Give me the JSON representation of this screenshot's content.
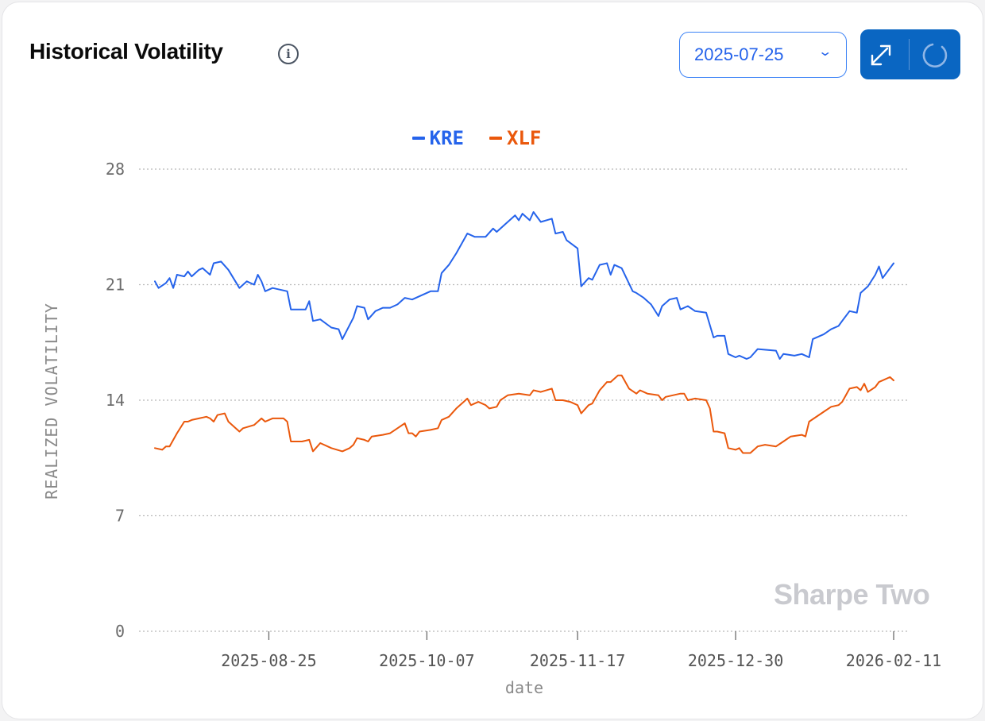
{
  "header": {
    "title": "Historical Volatility",
    "info_icon": "info-icon",
    "date_value": "2025-07-25",
    "expand_icon": "expand-icon",
    "refresh_icon": "loading-spinner-icon"
  },
  "watermark": "Sharpe Two",
  "colors": {
    "KRE": "#2563eb",
    "XLF": "#ea580c",
    "accent": "#0a66c2"
  },
  "chart_data": {
    "type": "line",
    "title": "Historical Volatility",
    "xlabel": "date",
    "ylabel": "REALIZED VOLATILITY",
    "x_start": "2025-07-25",
    "x_units": "days since x_start",
    "xlim": [
      0,
      201
    ],
    "ylim": [
      0,
      28
    ],
    "yticks": [
      0,
      7,
      14,
      21,
      28
    ],
    "xticks": [
      "2025-08-25",
      "2025-10-07",
      "2025-11-17",
      "2025-12-30",
      "2026-02-11"
    ],
    "grid": true,
    "legend": "top-center",
    "series": [
      {
        "name": "KRE",
        "points": [
          [
            0,
            21.2
          ],
          [
            1,
            20.8
          ],
          [
            3,
            21.1
          ],
          [
            4,
            21.4
          ],
          [
            5,
            20.8
          ],
          [
            6,
            21.6
          ],
          [
            8,
            21.5
          ],
          [
            9,
            21.8
          ],
          [
            10,
            21.5
          ],
          [
            12,
            21.9
          ],
          [
            13,
            22.0
          ],
          [
            15,
            21.6
          ],
          [
            16,
            22.3
          ],
          [
            18,
            22.4
          ],
          [
            20,
            21.9
          ],
          [
            23,
            20.8
          ],
          [
            25,
            21.2
          ],
          [
            27,
            21.0
          ],
          [
            28,
            21.6
          ],
          [
            29,
            21.2
          ],
          [
            30,
            20.6
          ],
          [
            32,
            20.8
          ],
          [
            36,
            20.6
          ],
          [
            37,
            19.5
          ],
          [
            40,
            19.5
          ],
          [
            41,
            19.5
          ],
          [
            42,
            20.0
          ],
          [
            43,
            18.8
          ],
          [
            45,
            18.9
          ],
          [
            48,
            18.4
          ],
          [
            50,
            18.3
          ],
          [
            51,
            17.7
          ],
          [
            54,
            19.0
          ],
          [
            55,
            19.7
          ],
          [
            57,
            19.6
          ],
          [
            58,
            18.9
          ],
          [
            60,
            19.4
          ],
          [
            62,
            19.6
          ],
          [
            64,
            19.6
          ],
          [
            66,
            19.8
          ],
          [
            68,
            20.2
          ],
          [
            70,
            20.1
          ],
          [
            75,
            20.6
          ],
          [
            77,
            20.6
          ],
          [
            78,
            21.7
          ],
          [
            80,
            22.2
          ],
          [
            82,
            22.9
          ],
          [
            84,
            23.7
          ],
          [
            85,
            24.1
          ],
          [
            87,
            23.9
          ],
          [
            90,
            23.9
          ],
          [
            92,
            24.4
          ],
          [
            93,
            24.2
          ],
          [
            96,
            24.8
          ],
          [
            98,
            25.2
          ],
          [
            99,
            24.9
          ],
          [
            100,
            25.3
          ],
          [
            102,
            24.9
          ],
          [
            103,
            25.4
          ],
          [
            105,
            24.8
          ],
          [
            108,
            25.0
          ],
          [
            109,
            24.1
          ],
          [
            111,
            24.2
          ],
          [
            112,
            23.7
          ],
          [
            115,
            23.2
          ],
          [
            116,
            20.9
          ],
          [
            118,
            21.4
          ],
          [
            119,
            21.3
          ],
          [
            121,
            22.2
          ],
          [
            123,
            22.3
          ],
          [
            124,
            21.6
          ],
          [
            125,
            22.2
          ],
          [
            127,
            22.0
          ],
          [
            130,
            20.6
          ],
          [
            131,
            20.5
          ],
          [
            133,
            20.2
          ],
          [
            135,
            19.8
          ],
          [
            137,
            19.1
          ],
          [
            138,
            19.7
          ],
          [
            140,
            20.1
          ],
          [
            142,
            20.2
          ],
          [
            143,
            19.5
          ],
          [
            145,
            19.7
          ],
          [
            147,
            19.4
          ],
          [
            150,
            19.3
          ],
          [
            152,
            17.8
          ],
          [
            153,
            17.9
          ],
          [
            155,
            17.9
          ],
          [
            156,
            16.8
          ],
          [
            158,
            16.6
          ],
          [
            159,
            16.7
          ],
          [
            161,
            16.5
          ],
          [
            162,
            16.6
          ],
          [
            164,
            17.1
          ],
          [
            169,
            17.0
          ],
          [
            170,
            16.5
          ],
          [
            171,
            16.8
          ],
          [
            174,
            16.7
          ],
          [
            176,
            16.8
          ],
          [
            178,
            16.6
          ],
          [
            179,
            17.7
          ],
          [
            182,
            18.0
          ],
          [
            184,
            18.3
          ],
          [
            186,
            18.5
          ],
          [
            187,
            18.8
          ],
          [
            189,
            19.4
          ],
          [
            191,
            19.3
          ],
          [
            192,
            20.5
          ],
          [
            194,
            20.9
          ],
          [
            196,
            21.6
          ],
          [
            197,
            22.1
          ],
          [
            198,
            21.4
          ],
          [
            200,
            22.0
          ],
          [
            201,
            22.3
          ]
        ]
      },
      {
        "name": "XLF",
        "points": [
          [
            0,
            11.1
          ],
          [
            2,
            11.0
          ],
          [
            3,
            11.2
          ],
          [
            4,
            11.2
          ],
          [
            6,
            12.0
          ],
          [
            8,
            12.7
          ],
          [
            9,
            12.7
          ],
          [
            10,
            12.8
          ],
          [
            12,
            12.9
          ],
          [
            14,
            13.0
          ],
          [
            15,
            12.9
          ],
          [
            16,
            12.7
          ],
          [
            17,
            13.1
          ],
          [
            19,
            13.2
          ],
          [
            20,
            12.7
          ],
          [
            23,
            12.1
          ],
          [
            24,
            12.3
          ],
          [
            27,
            12.5
          ],
          [
            29,
            12.9
          ],
          [
            30,
            12.7
          ],
          [
            32,
            12.9
          ],
          [
            35,
            12.9
          ],
          [
            36,
            12.7
          ],
          [
            37,
            11.5
          ],
          [
            40,
            11.5
          ],
          [
            42,
            11.6
          ],
          [
            43,
            10.9
          ],
          [
            45,
            11.4
          ],
          [
            48,
            11.1
          ],
          [
            51,
            10.9
          ],
          [
            53,
            11.1
          ],
          [
            54,
            11.3
          ],
          [
            55,
            11.7
          ],
          [
            57,
            11.6
          ],
          [
            58,
            11.5
          ],
          [
            59,
            11.8
          ],
          [
            62,
            11.9
          ],
          [
            64,
            12.0
          ],
          [
            66,
            12.3
          ],
          [
            68,
            12.6
          ],
          [
            69,
            12.0
          ],
          [
            70,
            12.0
          ],
          [
            71,
            11.8
          ],
          [
            72,
            12.1
          ],
          [
            75,
            12.2
          ],
          [
            77,
            12.3
          ],
          [
            78,
            12.8
          ],
          [
            80,
            13.0
          ],
          [
            82,
            13.5
          ],
          [
            84,
            13.9
          ],
          [
            85,
            14.1
          ],
          [
            86,
            13.7
          ],
          [
            88,
            13.9
          ],
          [
            90,
            13.7
          ],
          [
            91,
            13.5
          ],
          [
            93,
            13.6
          ],
          [
            94,
            14.0
          ],
          [
            96,
            14.3
          ],
          [
            99,
            14.4
          ],
          [
            102,
            14.3
          ],
          [
            103,
            14.6
          ],
          [
            105,
            14.5
          ],
          [
            108,
            14.7
          ],
          [
            109,
            14.0
          ],
          [
            111,
            14.0
          ],
          [
            113,
            13.9
          ],
          [
            115,
            13.7
          ],
          [
            116,
            13.2
          ],
          [
            118,
            13.7
          ],
          [
            119,
            13.8
          ],
          [
            121,
            14.6
          ],
          [
            123,
            15.1
          ],
          [
            124,
            15.1
          ],
          [
            126,
            15.5
          ],
          [
            127,
            15.5
          ],
          [
            129,
            14.7
          ],
          [
            131,
            14.4
          ],
          [
            132,
            14.6
          ],
          [
            134,
            14.4
          ],
          [
            137,
            14.3
          ],
          [
            138,
            14.0
          ],
          [
            139,
            14.2
          ],
          [
            143,
            14.4
          ],
          [
            144,
            14.4
          ],
          [
            145,
            14.0
          ],
          [
            147,
            14.1
          ],
          [
            150,
            14.0
          ],
          [
            151,
            13.5
          ],
          [
            152,
            12.1
          ],
          [
            153,
            12.1
          ],
          [
            155,
            12.0
          ],
          [
            156,
            11.1
          ],
          [
            158,
            11.0
          ],
          [
            159,
            11.1
          ],
          [
            160,
            10.8
          ],
          [
            162,
            10.8
          ],
          [
            164,
            11.2
          ],
          [
            166,
            11.3
          ],
          [
            169,
            11.2
          ],
          [
            171,
            11.5
          ],
          [
            173,
            11.8
          ],
          [
            176,
            11.9
          ],
          [
            177,
            11.8
          ],
          [
            178,
            12.7
          ],
          [
            182,
            13.3
          ],
          [
            184,
            13.6
          ],
          [
            186,
            13.7
          ],
          [
            187,
            13.9
          ],
          [
            189,
            14.7
          ],
          [
            191,
            14.8
          ],
          [
            192,
            14.6
          ],
          [
            193,
            15.0
          ],
          [
            194,
            14.5
          ],
          [
            196,
            14.8
          ],
          [
            197,
            15.1
          ],
          [
            198,
            15.2
          ],
          [
            200,
            15.4
          ],
          [
            201,
            15.2
          ]
        ]
      }
    ]
  }
}
